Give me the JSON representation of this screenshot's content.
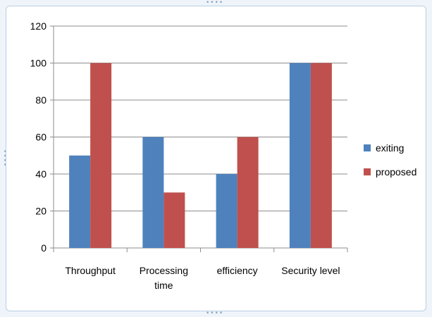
{
  "chart_data": {
    "type": "bar",
    "categories": [
      [
        "Throughput"
      ],
      [
        "Processing",
        "time"
      ],
      [
        "efficiency"
      ],
      [
        "Security level"
      ]
    ],
    "series": [
      {
        "name": "exiting",
        "values": [
          50,
          60,
          40,
          100
        ],
        "color": "#4f81bd"
      },
      {
        "name": "proposed",
        "values": [
          100,
          30,
          60,
          100
        ],
        "color": "#c0504d"
      }
    ],
    "yticks": [
      0,
      20,
      40,
      60,
      80,
      100,
      120
    ],
    "ylim": [
      0,
      120
    ],
    "grid": true,
    "legend": "right",
    "title": "",
    "xlabel": "",
    "ylabel": ""
  }
}
